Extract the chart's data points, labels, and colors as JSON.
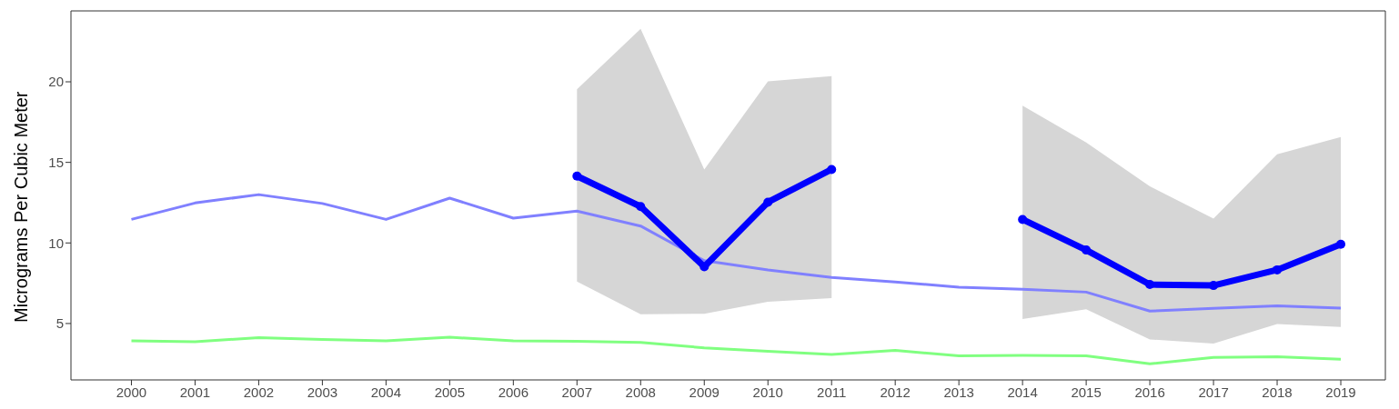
{
  "chart_data": {
    "type": "line",
    "ylabel": "Micrograms Per Cubic Meter",
    "x": [
      2000,
      2001,
      2002,
      2003,
      2004,
      2005,
      2006,
      2007,
      2008,
      2009,
      2010,
      2011,
      2012,
      2013,
      2014,
      2015,
      2016,
      2017,
      2018,
      2019
    ],
    "series": [
      {
        "color": "#8080ff",
        "marker": "none",
        "values": [
          11.46,
          12.48,
          13.0,
          12.45,
          11.46,
          12.78,
          11.54,
          11.98,
          11.05,
          8.9,
          8.33,
          7.86,
          7.58,
          7.25,
          7.12,
          6.95,
          5.77,
          5.94,
          6.1,
          5.96
        ]
      },
      {
        "color": "#80ff80",
        "marker": "none",
        "values": [
          3.93,
          3.87,
          4.12,
          4.01,
          3.93,
          4.15,
          3.93,
          3.9,
          3.82,
          3.49,
          3.27,
          3.08,
          3.33,
          3.0,
          3.02,
          3.0,
          2.5,
          2.89,
          2.94,
          2.78
        ]
      },
      {
        "color": "#0000ff",
        "marker": "circle",
        "values": [
          null,
          null,
          null,
          null,
          null,
          null,
          null,
          14.15,
          12.26,
          8.52,
          12.53,
          14.56,
          null,
          null,
          11.46,
          9.56,
          7.42,
          7.36,
          8.33,
          9.92
        ],
        "lower": [
          null,
          null,
          null,
          null,
          null,
          null,
          null,
          7.61,
          5.58,
          5.6,
          6.35,
          6.57,
          null,
          null,
          5.28,
          5.88,
          4.01,
          3.76,
          4.97,
          4.78
        ],
        "upper": [
          null,
          null,
          null,
          null,
          null,
          null,
          null,
          19.54,
          23.28,
          14.56,
          20.03,
          20.36,
          null,
          null,
          18.52,
          16.24,
          13.52,
          11.51,
          15.5,
          16.57
        ]
      }
    ],
    "xlim": [
      1999.05,
      2019.7
    ],
    "xticks": [
      2000,
      2001,
      2002,
      2003,
      2004,
      2005,
      2006,
      2007,
      2008,
      2009,
      2010,
      2011,
      2012,
      2013,
      2014,
      2015,
      2016,
      2017,
      2018,
      2019
    ],
    "ylim": [
      1.5,
      24.4
    ],
    "yticks": [
      5,
      10,
      15,
      20
    ],
    "line_style": "solid"
  }
}
